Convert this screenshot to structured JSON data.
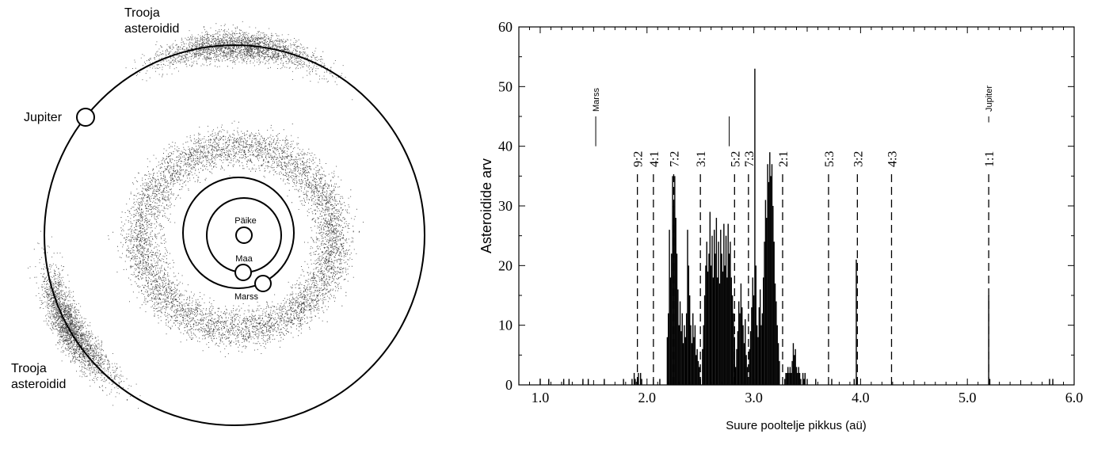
{
  "diagram": {
    "labels": {
      "trojans_top": [
        "Trooja",
        "asteroidid"
      ],
      "trojans_bottom": [
        "Trooja",
        "asteroidid"
      ],
      "jupiter": "Jupiter",
      "sun": "Päike",
      "earth": "Maa",
      "mars": "Marss"
    }
  },
  "chart_data": {
    "type": "bar",
    "title": "",
    "xlabel": "Suure pooltelje pikkus (aü)",
    "ylabel": "Asteroidide arv",
    "xlim": [
      0.8,
      6.0
    ],
    "ylim": [
      0,
      60
    ],
    "xticks": [
      "1.0",
      "2.0",
      "3.0",
      "4.0",
      "5.0",
      "6.0"
    ],
    "yticks": [
      "0",
      "10",
      "20",
      "30",
      "40",
      "50",
      "60"
    ],
    "grid": false,
    "bar_width": 0.01,
    "bars": [
      [
        1.0,
        1
      ],
      [
        1.08,
        1
      ],
      [
        1.22,
        1
      ],
      [
        1.27,
        1
      ],
      [
        1.4,
        1
      ],
      [
        1.45,
        1
      ],
      [
        1.6,
        1
      ],
      [
        1.78,
        1
      ],
      [
        1.86,
        1
      ],
      [
        1.88,
        2
      ],
      [
        1.89,
        1
      ],
      [
        1.91,
        1
      ],
      [
        1.92,
        2
      ],
      [
        1.94,
        2
      ],
      [
        1.95,
        1
      ],
      [
        2.06,
        1
      ],
      [
        2.12,
        1
      ],
      [
        2.19,
        8
      ],
      [
        2.2,
        12
      ],
      [
        2.21,
        26
      ],
      [
        2.22,
        18
      ],
      [
        2.23,
        22
      ],
      [
        2.24,
        35
      ],
      [
        2.25,
        30
      ],
      [
        2.26,
        35
      ],
      [
        2.27,
        28
      ],
      [
        2.28,
        22
      ],
      [
        2.29,
        16
      ],
      [
        2.3,
        10
      ],
      [
        2.31,
        14
      ],
      [
        2.32,
        9
      ],
      [
        2.33,
        12
      ],
      [
        2.34,
        7
      ],
      [
        2.35,
        10
      ],
      [
        2.36,
        8
      ],
      [
        2.37,
        12
      ],
      [
        2.38,
        26
      ],
      [
        2.39,
        20
      ],
      [
        2.4,
        15
      ],
      [
        2.41,
        10
      ],
      [
        2.42,
        7
      ],
      [
        2.43,
        12
      ],
      [
        2.44,
        8
      ],
      [
        2.45,
        10
      ],
      [
        2.46,
        5
      ],
      [
        2.47,
        6
      ],
      [
        2.48,
        4
      ],
      [
        2.49,
        3
      ],
      [
        2.5,
        1
      ],
      [
        2.52,
        6
      ],
      [
        2.53,
        10
      ],
      [
        2.54,
        15
      ],
      [
        2.55,
        20
      ],
      [
        2.56,
        24
      ],
      [
        2.57,
        19
      ],
      [
        2.58,
        22
      ],
      [
        2.59,
        29
      ],
      [
        2.6,
        20
      ],
      [
        2.61,
        25
      ],
      [
        2.62,
        18
      ],
      [
        2.63,
        26
      ],
      [
        2.64,
        22
      ],
      [
        2.65,
        28
      ],
      [
        2.66,
        18
      ],
      [
        2.67,
        24
      ],
      [
        2.68,
        17
      ],
      [
        2.69,
        26
      ],
      [
        2.7,
        22
      ],
      [
        2.71,
        19
      ],
      [
        2.72,
        27
      ],
      [
        2.73,
        20
      ],
      [
        2.74,
        25
      ],
      [
        2.75,
        18
      ],
      [
        2.76,
        27
      ],
      [
        2.77,
        22
      ],
      [
        2.78,
        24
      ],
      [
        2.79,
        18
      ],
      [
        2.8,
        15
      ],
      [
        2.81,
        12
      ],
      [
        2.82,
        8
      ],
      [
        2.83,
        3
      ],
      [
        2.84,
        6
      ],
      [
        2.85,
        9
      ],
      [
        2.86,
        14
      ],
      [
        2.87,
        12
      ],
      [
        2.88,
        17
      ],
      [
        2.89,
        13
      ],
      [
        2.9,
        10
      ],
      [
        2.91,
        7
      ],
      [
        2.92,
        11
      ],
      [
        2.93,
        5
      ],
      [
        2.94,
        3
      ],
      [
        2.96,
        6
      ],
      [
        2.97,
        9
      ],
      [
        2.98,
        13
      ],
      [
        2.99,
        18
      ],
      [
        3.0,
        15
      ],
      [
        3.01,
        53
      ],
      [
        3.02,
        20
      ],
      [
        3.03,
        10
      ],
      [
        3.04,
        8
      ],
      [
        3.05,
        13
      ],
      [
        3.06,
        16
      ],
      [
        3.07,
        10
      ],
      [
        3.08,
        12
      ],
      [
        3.09,
        18
      ],
      [
        3.1,
        24
      ],
      [
        3.11,
        31
      ],
      [
        3.12,
        28
      ],
      [
        3.13,
        37
      ],
      [
        3.14,
        34
      ],
      [
        3.15,
        39
      ],
      [
        3.16,
        35
      ],
      [
        3.17,
        37
      ],
      [
        3.18,
        30
      ],
      [
        3.19,
        24
      ],
      [
        3.2,
        17
      ],
      [
        3.21,
        14
      ],
      [
        3.22,
        10
      ],
      [
        3.23,
        7
      ],
      [
        3.24,
        4
      ],
      [
        3.29,
        1
      ],
      [
        3.3,
        2
      ],
      [
        3.31,
        2
      ],
      [
        3.32,
        3
      ],
      [
        3.33,
        2
      ],
      [
        3.34,
        3
      ],
      [
        3.35,
        2
      ],
      [
        3.36,
        4
      ],
      [
        3.37,
        7
      ],
      [
        3.38,
        5
      ],
      [
        3.39,
        6
      ],
      [
        3.4,
        3
      ],
      [
        3.41,
        2
      ],
      [
        3.42,
        3
      ],
      [
        3.43,
        2
      ],
      [
        3.44,
        1
      ],
      [
        3.46,
        2
      ],
      [
        3.47,
        1
      ],
      [
        3.48,
        2
      ],
      [
        3.5,
        1
      ],
      [
        3.58,
        1
      ],
      [
        3.73,
        1
      ],
      [
        3.94,
        1
      ],
      [
        3.96,
        21
      ],
      [
        3.97,
        1
      ],
      [
        5.2,
        15
      ],
      [
        5.21,
        1
      ],
      [
        5.77,
        1
      ],
      [
        5.8,
        1
      ]
    ],
    "resonances": [
      {
        "label": "9:2",
        "x": 1.91
      },
      {
        "label": "4:1",
        "x": 2.06
      },
      {
        "label": "7:2",
        "x": 2.25
      },
      {
        "label": "3:1",
        "x": 2.5
      },
      {
        "label": "5:2",
        "x": 2.82
      },
      {
        "label": "7:3",
        "x": 2.95
      },
      {
        "label": "2:1",
        "x": 3.27
      },
      {
        "label": "5:3",
        "x": 3.7
      },
      {
        "label": "3:2",
        "x": 3.97
      },
      {
        "label": "4:3",
        "x": 4.29
      },
      {
        "label": "1:1",
        "x": 5.2
      }
    ],
    "planet_markers": [
      {
        "label": "Marss",
        "x": 1.52,
        "y_range": [
          40,
          45
        ],
        "labeled": true
      },
      {
        "label": "",
        "x": 2.77,
        "y_range": [
          40,
          45
        ],
        "labeled": false
      },
      {
        "label": "Jupiter",
        "x": 5.2,
        "y_range": [
          44,
          45
        ],
        "labeled": true
      }
    ]
  }
}
